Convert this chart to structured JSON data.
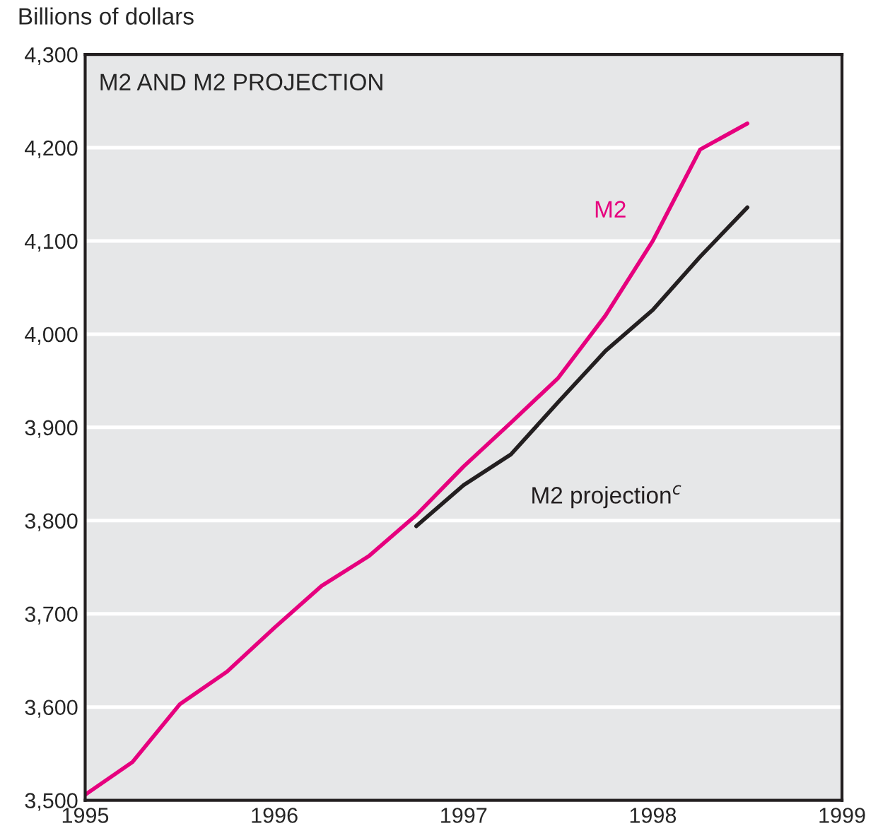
{
  "chart_data": {
    "type": "line",
    "title": "M2 AND M2 PROJECTION",
    "ylabel": "Billions of dollars",
    "xlim": [
      1995,
      1999
    ],
    "xticks": [
      1995,
      1996,
      1997,
      1998,
      1999
    ],
    "ylim": [
      3500,
      4300
    ],
    "yticks": [
      {
        "value": 3500,
        "label": "3,500"
      },
      {
        "value": 3600,
        "label": "3,600"
      },
      {
        "value": 3700,
        "label": "3,700"
      },
      {
        "value": 3800,
        "label": "3,800"
      },
      {
        "value": 3900,
        "label": "3,900"
      },
      {
        "value": 4000,
        "label": "4,000"
      },
      {
        "value": 4100,
        "label": "4,100"
      },
      {
        "value": 4200,
        "label": "4,200"
      },
      {
        "value": 4300,
        "label": "4,300"
      }
    ],
    "grid": "y",
    "legend": false,
    "series": [
      {
        "name": "M2",
        "color": "#e6007e",
        "x": [
          1995.0,
          1995.25,
          1995.5,
          1995.75,
          1996.0,
          1996.25,
          1996.5,
          1996.75,
          1997.0,
          1997.25,
          1997.5,
          1997.75,
          1998.0,
          1998.25,
          1998.5
        ],
        "values": [
          3506,
          3541,
          3603,
          3638,
          3685,
          3730,
          3762,
          3806,
          3858,
          3905,
          3953,
          4020,
          4100,
          4198,
          4226
        ]
      },
      {
        "name": "M2 projection$^{c}$",
        "color": "#231f20",
        "x": [
          1996.75,
          1997.0,
          1997.25,
          1997.5,
          1997.75,
          1998.0,
          1998.25,
          1998.5
        ],
        "values": [
          3794,
          3838,
          3871,
          3927,
          3982,
          4026,
          4083,
          4136
        ]
      }
    ]
  }
}
